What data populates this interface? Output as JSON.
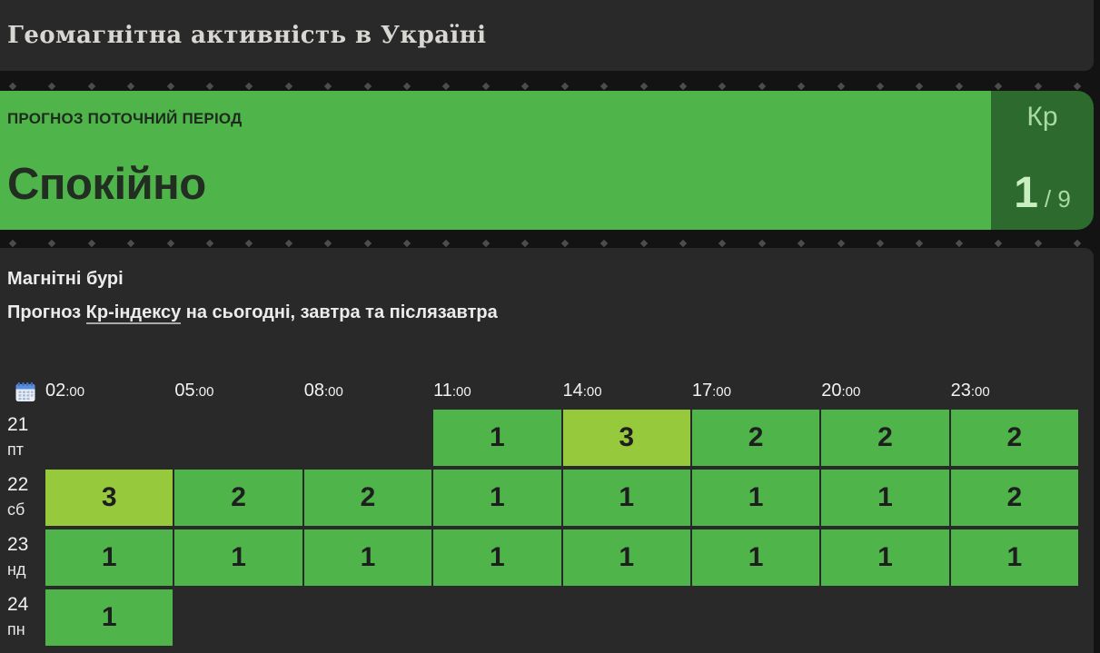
{
  "header": {
    "title": "Геомагнітна активність в Україні"
  },
  "banner": {
    "label": "ПРОГНОЗ ПОТОЧНИЙ ПЕРІОД",
    "status": "Спокійно",
    "kp": {
      "label": "Кр",
      "value": "1",
      "max": "/ 9"
    }
  },
  "storms": {
    "title": "Магнітні бурі",
    "subtitle_prefix": "Прогноз ",
    "subtitle_link": "Кр-індексу",
    "subtitle_suffix": " на сьогодні, завтра та післязавтра"
  },
  "forecast_table": {
    "calendar_icon": "calendar-icon",
    "time_hours": [
      "02",
      "05",
      "08",
      "11",
      "14",
      "17",
      "20",
      "23"
    ],
    "minutes_suffix": ":00",
    "rows": [
      {
        "date": "21",
        "day": "пт",
        "cells": [
          null,
          null,
          null,
          1,
          3,
          2,
          2,
          2
        ]
      },
      {
        "date": "22",
        "day": "сб",
        "cells": [
          3,
          2,
          2,
          1,
          1,
          1,
          1,
          2
        ]
      },
      {
        "date": "23",
        "day": "нд",
        "cells": [
          1,
          1,
          1,
          1,
          1,
          1,
          1,
          1
        ]
      },
      {
        "date": "24",
        "day": "пн",
        "cells": [
          1,
          null,
          null,
          null,
          null,
          null,
          null,
          null
        ]
      }
    ],
    "value_colors": {
      "1": "#4fb44a",
      "2": "#4fb44a",
      "3": "#97c93c"
    }
  },
  "colors": {
    "page_bg": "#131313",
    "panel_bg": "#292929",
    "banner_green": "#4fb44a",
    "kp_box_green": "#2d6a2d",
    "diamond": "#4c4c4c"
  },
  "diamond_count": 28
}
